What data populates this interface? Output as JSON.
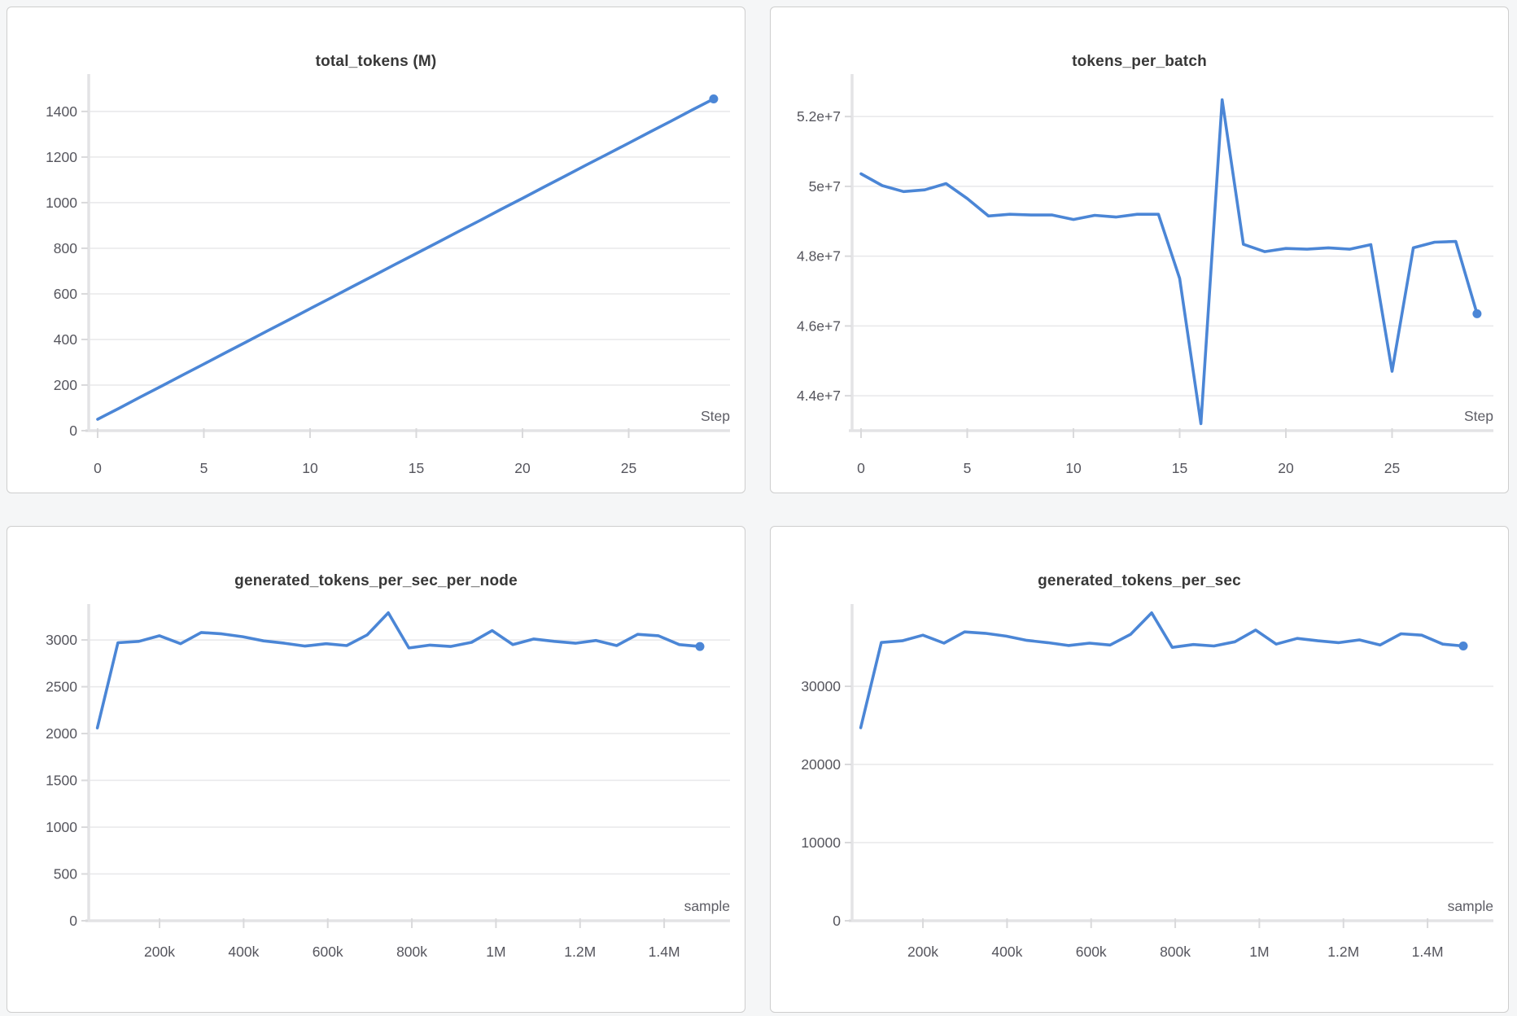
{
  "page": {
    "background": "#f5f6f7",
    "panel_bg": "#ffffff",
    "panel_border": "#cecece",
    "line_color": "#4b86d6",
    "grid_color": "#e8e8ea",
    "axis_color": "#e3e3e5",
    "tick_color": "#d9d9db",
    "label_color": "#55555d",
    "axis_label_color": "#5e5e66",
    "title_color": "#383838"
  },
  "chart_data": [
    {
      "type": "line",
      "title": "total_tokens (M)",
      "xlabel": "Step",
      "grid": true,
      "legend": "none",
      "xlim": [
        -0.42,
        29.77
      ],
      "ylim": [
        0,
        1546
      ],
      "x_ticks": [
        {
          "v": 0,
          "label": "0"
        },
        {
          "v": 5,
          "label": "5"
        },
        {
          "v": 10,
          "label": "10"
        },
        {
          "v": 15,
          "label": "15"
        },
        {
          "v": 20,
          "label": "20"
        },
        {
          "v": 25,
          "label": "25"
        }
      ],
      "y_ticks": [
        {
          "v": 0,
          "label": "0"
        },
        {
          "v": 200,
          "label": "200"
        },
        {
          "v": 400,
          "label": "400"
        },
        {
          "v": 600,
          "label": "600"
        },
        {
          "v": 800,
          "label": "800"
        },
        {
          "v": 1000,
          "label": "1000"
        },
        {
          "v": 1200,
          "label": "1200"
        },
        {
          "v": 1400,
          "label": "1400"
        }
      ],
      "x": [
        0,
        1,
        2,
        3,
        4,
        5,
        6,
        7,
        8,
        9,
        10,
        11,
        12,
        13,
        14,
        15,
        16,
        17,
        18,
        19,
        20,
        21,
        22,
        23,
        24,
        25,
        26,
        27,
        28,
        29
      ],
      "y": [
        50,
        98,
        147,
        195,
        244,
        292,
        341,
        389,
        438,
        486,
        535,
        583,
        632,
        680,
        729,
        777,
        825,
        874,
        922,
        971,
        1019,
        1068,
        1116,
        1165,
        1213,
        1261,
        1310,
        1358,
        1407,
        1455
      ]
    },
    {
      "type": "line",
      "title": "tokens_per_batch",
      "xlabel": "Step",
      "grid": true,
      "legend": "none",
      "xlim": [
        -0.42,
        29.77
      ],
      "ylim": [
        43000000,
        53100000
      ],
      "x_ticks": [
        {
          "v": 0,
          "label": "0"
        },
        {
          "v": 5,
          "label": "5"
        },
        {
          "v": 10,
          "label": "10"
        },
        {
          "v": 15,
          "label": "15"
        },
        {
          "v": 20,
          "label": "20"
        },
        {
          "v": 25,
          "label": "25"
        }
      ],
      "y_ticks": [
        {
          "v": 44000000,
          "label": "4.4e+7"
        },
        {
          "v": 46000000,
          "label": "4.6e+7"
        },
        {
          "v": 48000000,
          "label": "4.8e+7"
        },
        {
          "v": 50000000,
          "label": "5e+7"
        },
        {
          "v": 52000000,
          "label": "5.2e+7"
        }
      ],
      "x": [
        0,
        1,
        2,
        3,
        4,
        5,
        6,
        7,
        8,
        9,
        10,
        11,
        12,
        13,
        14,
        15,
        16,
        17,
        18,
        19,
        20,
        21,
        22,
        23,
        24,
        25,
        26,
        27,
        28,
        29
      ],
      "y": [
        50360000,
        50020000,
        49850000,
        49900000,
        50080000,
        49650000,
        49150000,
        49200000,
        49180000,
        49180000,
        49050000,
        49170000,
        49120000,
        49200000,
        49200000,
        47360000,
        43200000,
        52480000,
        48340000,
        48130000,
        48220000,
        48200000,
        48240000,
        48200000,
        48330000,
        44700000,
        48240000,
        48400000,
        48420000,
        46350000
      ]
    },
    {
      "type": "line",
      "title": "generated_tokens_per_sec_per_node",
      "xlabel": "sample",
      "grid": true,
      "legend": "none",
      "xlim": [
        31550,
        1556600
      ],
      "ylim": [
        0,
        3340
      ],
      "x_ticks": [
        {
          "v": 200000,
          "label": "200k"
        },
        {
          "v": 400000,
          "label": "400k"
        },
        {
          "v": 600000,
          "label": "600k"
        },
        {
          "v": 800000,
          "label": "800k"
        },
        {
          "v": 1000000,
          "label": "1M"
        },
        {
          "v": 1200000,
          "label": "1.2M"
        },
        {
          "v": 1400000,
          "label": "1.4M"
        }
      ],
      "y_ticks": [
        {
          "v": 0,
          "label": "0"
        },
        {
          "v": 500,
          "label": "500"
        },
        {
          "v": 1000,
          "label": "1000"
        },
        {
          "v": 1500,
          "label": "1500"
        },
        {
          "v": 2000,
          "label": "2000"
        },
        {
          "v": 2500,
          "label": "2500"
        },
        {
          "v": 3000,
          "label": "3000"
        }
      ],
      "x": [
        52000,
        101000,
        151000,
        200000,
        250000,
        299000,
        348000,
        398000,
        447000,
        497000,
        546000,
        596000,
        645000,
        694000,
        744000,
        793000,
        843000,
        892000,
        942000,
        991000,
        1040000,
        1090000,
        1139000,
        1189000,
        1238000,
        1287000,
        1337000,
        1386000,
        1436000,
        1485000
      ],
      "y": [
        2060,
        2970,
        2985,
        3045,
        2960,
        3080,
        3065,
        3035,
        2990,
        2965,
        2935,
        2960,
        2940,
        3055,
        3290,
        2915,
        2945,
        2930,
        2975,
        3100,
        2950,
        3010,
        2985,
        2965,
        2995,
        2940,
        3060,
        3045,
        2950,
        2930
      ]
    },
    {
      "type": "line",
      "title": "generated_tokens_per_sec",
      "xlabel": "sample",
      "grid": true,
      "legend": "none",
      "xlim": [
        31550,
        1556600
      ],
      "ylim": [
        0,
        40000
      ],
      "x_ticks": [
        {
          "v": 200000,
          "label": "200k"
        },
        {
          "v": 400000,
          "label": "400k"
        },
        {
          "v": 600000,
          "label": "600k"
        },
        {
          "v": 800000,
          "label": "800k"
        },
        {
          "v": 1000000,
          "label": "1M"
        },
        {
          "v": 1200000,
          "label": "1.2M"
        },
        {
          "v": 1400000,
          "label": "1.4M"
        }
      ],
      "y_ticks": [
        {
          "v": 0,
          "label": "0"
        },
        {
          "v": 10000,
          "label": "10000"
        },
        {
          "v": 20000,
          "label": "20000"
        },
        {
          "v": 30000,
          "label": "30000"
        }
      ],
      "x": [
        52000,
        101000,
        151000,
        200000,
        250000,
        299000,
        348000,
        398000,
        447000,
        497000,
        546000,
        596000,
        645000,
        694000,
        744000,
        793000,
        843000,
        892000,
        942000,
        991000,
        1040000,
        1090000,
        1139000,
        1189000,
        1238000,
        1287000,
        1337000,
        1386000,
        1436000,
        1485000
      ],
      "y": [
        24700,
        35600,
        35820,
        36540,
        35520,
        36960,
        36780,
        36420,
        35880,
        35580,
        35220,
        35520,
        35280,
        36660,
        39400,
        34980,
        35340,
        35160,
        35700,
        37200,
        35400,
        36120,
        35820,
        35580,
        35940,
        35280,
        36720,
        36540,
        35400,
        35160
      ]
    }
  ]
}
